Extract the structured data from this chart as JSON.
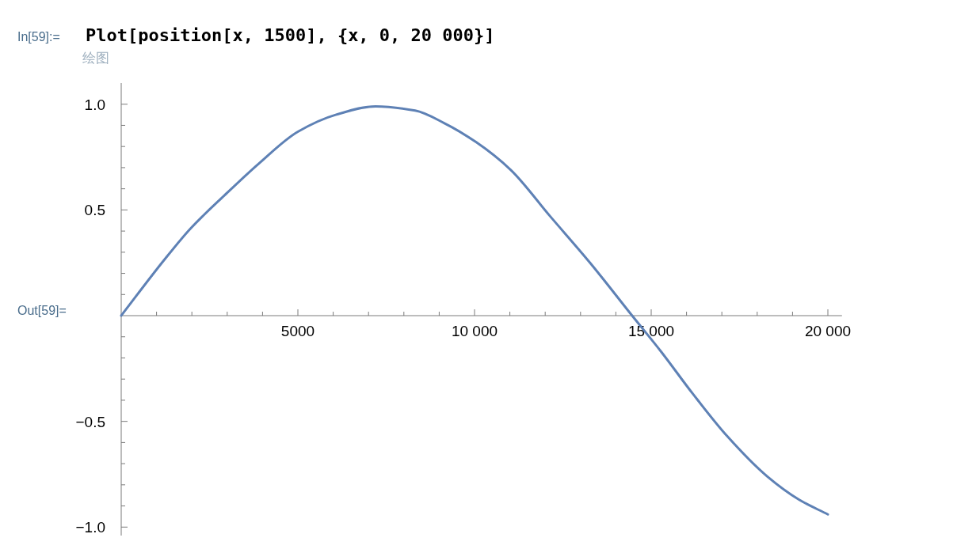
{
  "chart_data": {
    "type": "line",
    "annotations": [
      "In[59]:=",
      "Plot[position[x, 1500], {x, 0, 20 000}]",
      "绘图",
      "Out[59]="
    ],
    "x": [
      0,
      1200,
      1950,
      2930,
      3900,
      5000,
      6070,
      7200,
      8320,
      9150,
      10050,
      11020,
      12140,
      13270,
      14460,
      15280,
      16180,
      17150,
      18280,
      19180,
      20000
    ],
    "series": [
      {
        "color": "#5e81b5",
        "values": [
          0,
          0.26,
          0.41,
          0.57,
          0.72,
          0.87,
          0.95,
          0.99,
          0.97,
          0.91,
          0.82,
          0.69,
          0.47,
          0.25,
          0,
          -0.17,
          -0.37,
          -0.57,
          -0.76,
          -0.87,
          -0.94
        ]
      }
    ],
    "xlim": [
      0,
      20400
    ],
    "ylim": [
      -1.04,
      1.1
    ],
    "xticks": [
      {
        "value": 1000,
        "label": null
      },
      {
        "value": 2000,
        "label": null
      },
      {
        "value": 3000,
        "label": null
      },
      {
        "value": 4000,
        "label": null
      },
      5000,
      {
        "value": 6000,
        "label": null
      },
      {
        "value": 7000,
        "label": null
      },
      {
        "value": 8000,
        "label": null
      },
      {
        "value": 9000,
        "label": null
      },
      {
        "value": 10000,
        "label": "10 000"
      },
      {
        "value": 11000,
        "label": null
      },
      {
        "value": 12000,
        "label": null
      },
      {
        "value": 13000,
        "label": null
      },
      {
        "value": 14000,
        "label": null
      },
      {
        "value": 15000,
        "label": "15 000"
      },
      {
        "value": 16000,
        "label": null
      },
      {
        "value": 17000,
        "label": null
      },
      {
        "value": 18000,
        "label": null
      },
      {
        "value": 19000,
        "label": null
      },
      {
        "value": 20000,
        "label": "20 000"
      }
    ],
    "yticks": [
      {
        "value": -1.0,
        "label": "−1.0"
      },
      {
        "value": -0.9,
        "label": null
      },
      {
        "value": -0.8,
        "label": null
      },
      {
        "value": -0.7,
        "label": null
      },
      {
        "value": -0.6,
        "label": null
      },
      {
        "value": -0.5,
        "label": "−0.5"
      },
      {
        "value": -0.4,
        "label": null
      },
      {
        "value": -0.3,
        "label": null
      },
      {
        "value": -0.2,
        "label": null
      },
      {
        "value": -0.1,
        "label": null
      },
      {
        "value": 0.1,
        "label": null
      },
      {
        "value": 0.2,
        "label": null
      },
      {
        "value": 0.3,
        "label": null
      },
      {
        "value": 0.4,
        "label": null
      },
      {
        "value": 0.5,
        "label": "0.5"
      },
      {
        "value": 0.6,
        "label": null
      },
      {
        "value": 0.7,
        "label": null
      },
      {
        "value": 0.8,
        "label": null
      },
      {
        "value": 0.9,
        "label": null
      },
      {
        "value": 1.0,
        "label": "1.0"
      }
    ],
    "grid": false,
    "marker": "none",
    "line_style": "solid"
  }
}
